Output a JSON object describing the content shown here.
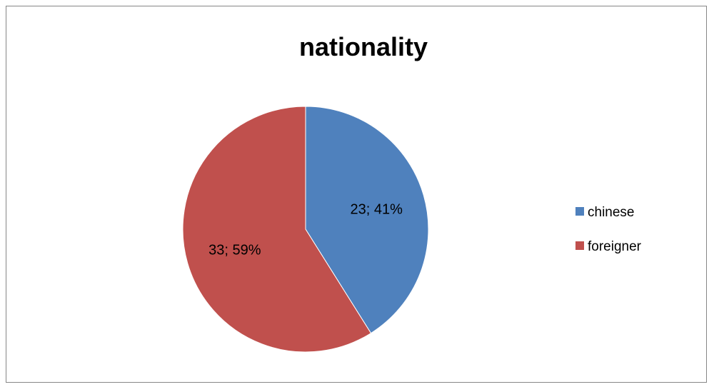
{
  "chart_data": {
    "type": "pie",
    "title": "nationality",
    "categories": [
      "chinese",
      "foreigner"
    ],
    "values": [
      23,
      33
    ],
    "percentages": [
      "41%",
      "59%"
    ],
    "data_labels": [
      "23; 41%",
      "33; 59%"
    ],
    "colors": [
      "#4F81BD",
      "#C0504D"
    ],
    "legend_position": "right"
  }
}
